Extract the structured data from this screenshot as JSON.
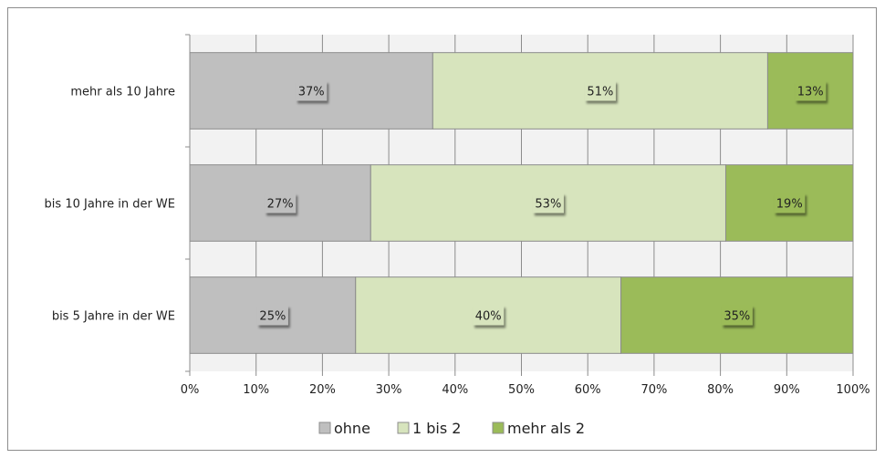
{
  "chart_data": {
    "type": "bar",
    "orientation": "horizontal",
    "stacked": "percent",
    "categories": [
      "mehr als 10 Jahre",
      "bis 10 Jahre in der WE",
      "bis 5 Jahre in der WE"
    ],
    "series": [
      {
        "name": "ohne",
        "values": [
          37,
          27,
          25
        ],
        "labels": [
          "37%",
          "27%",
          "25%"
        ],
        "color": "#bfbfbf"
      },
      {
        "name": "1 bis 2",
        "values": [
          51,
          53,
          40
        ],
        "labels": [
          "51%",
          "53%",
          "40%"
        ],
        "color": "#d7e4bd"
      },
      {
        "name": "mehr als 2",
        "values": [
          13,
          19,
          35
        ],
        "labels": [
          "13%",
          "19%",
          "35%"
        ],
        "color": "#9bbb59"
      }
    ],
    "x_ticks": [
      "0%",
      "10%",
      "20%",
      "30%",
      "40%",
      "50%",
      "60%",
      "70%",
      "80%",
      "90%",
      "100%"
    ],
    "xlim": [
      0,
      100
    ],
    "grid": true,
    "legend_position": "bottom"
  }
}
